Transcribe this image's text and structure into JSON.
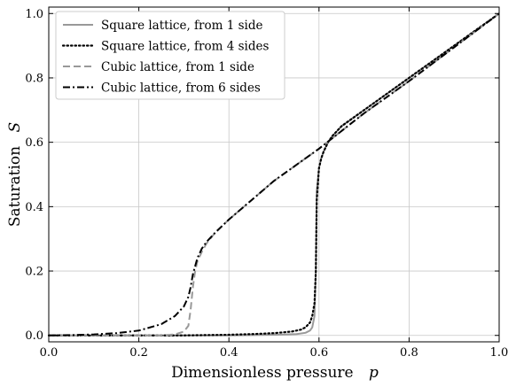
{
  "chart_data": {
    "type": "line",
    "title": "",
    "xlabel": "Dimensionless pressure",
    "xlabel_symbol": "p",
    "ylabel": "Saturation",
    "ylabel_symbol": "S",
    "xlim": [
      0.0,
      1.0
    ],
    "ylim": [
      -0.02,
      1.02
    ],
    "xticks": [
      0.0,
      0.2,
      0.4,
      0.6,
      0.8,
      1.0
    ],
    "yticks": [
      0.0,
      0.2,
      0.4,
      0.6,
      0.8,
      1.0
    ],
    "xtick_labels": [
      "0.0",
      "0.2",
      "0.4",
      "0.6",
      "0.8",
      "1.0"
    ],
    "ytick_labels": [
      "0.0",
      "0.2",
      "0.4",
      "0.6",
      "0.8",
      "1.0"
    ],
    "grid": true,
    "legend_position": "top-left",
    "series": [
      {
        "name": "Square lattice, from 1 side",
        "color": "#999999",
        "style": "solid",
        "x": [
          0.0,
          0.1,
          0.2,
          0.3,
          0.4,
          0.5,
          0.55,
          0.57,
          0.58,
          0.585,
          0.59,
          0.593,
          0.595,
          0.6,
          0.605,
          0.61,
          0.62,
          0.63,
          0.65,
          0.7,
          0.75,
          0.8,
          0.9,
          1.0
        ],
        "y": [
          0.0,
          0.0,
          0.0,
          0.0,
          0.0,
          0.002,
          0.004,
          0.008,
          0.015,
          0.025,
          0.06,
          0.2,
          0.45,
          0.52,
          0.55,
          0.57,
          0.6,
          0.62,
          0.65,
          0.7,
          0.75,
          0.8,
          0.9,
          1.0
        ]
      },
      {
        "name": "Square lattice, from 4 sides",
        "color": "#000000",
        "style": "dotted",
        "x": [
          0.0,
          0.1,
          0.2,
          0.3,
          0.4,
          0.45,
          0.5,
          0.54,
          0.56,
          0.57,
          0.58,
          0.585,
          0.59,
          0.593,
          0.595,
          0.6,
          0.605,
          0.61,
          0.62,
          0.63,
          0.65,
          0.7,
          0.75,
          0.8,
          0.9,
          1.0
        ],
        "y": [
          0.0,
          0.0,
          0.0,
          0.0,
          0.002,
          0.004,
          0.007,
          0.012,
          0.018,
          0.025,
          0.04,
          0.06,
          0.1,
          0.2,
          0.42,
          0.52,
          0.55,
          0.57,
          0.6,
          0.62,
          0.65,
          0.7,
          0.75,
          0.8,
          0.9,
          1.0
        ]
      },
      {
        "name": "Cubic lattice, from 1 side",
        "color": "#999999",
        "style": "dashed",
        "x": [
          0.0,
          0.1,
          0.2,
          0.25,
          0.28,
          0.3,
          0.31,
          0.315,
          0.32,
          0.325,
          0.33,
          0.34,
          0.35,
          0.37,
          0.4,
          0.45,
          0.5,
          0.6,
          0.7,
          0.8,
          0.9,
          1.0
        ],
        "y": [
          0.0,
          0.0,
          0.0,
          0.0,
          0.003,
          0.012,
          0.03,
          0.08,
          0.15,
          0.2,
          0.23,
          0.26,
          0.285,
          0.32,
          0.36,
          0.42,
          0.48,
          0.58,
          0.69,
          0.79,
          0.895,
          1.0
        ]
      },
      {
        "name": "Cubic lattice, from 6 sides",
        "color": "#000000",
        "style": "dashdot",
        "x": [
          0.0,
          0.05,
          0.1,
          0.15,
          0.2,
          0.25,
          0.28,
          0.3,
          0.31,
          0.315,
          0.32,
          0.33,
          0.34,
          0.35,
          0.37,
          0.4,
          0.45,
          0.5,
          0.6,
          0.7,
          0.8,
          0.9,
          1.0
        ],
        "y": [
          0.0,
          0.001,
          0.003,
          0.007,
          0.015,
          0.035,
          0.06,
          0.09,
          0.12,
          0.15,
          0.19,
          0.24,
          0.27,
          0.29,
          0.32,
          0.36,
          0.42,
          0.48,
          0.58,
          0.69,
          0.79,
          0.895,
          1.0
        ]
      }
    ]
  }
}
